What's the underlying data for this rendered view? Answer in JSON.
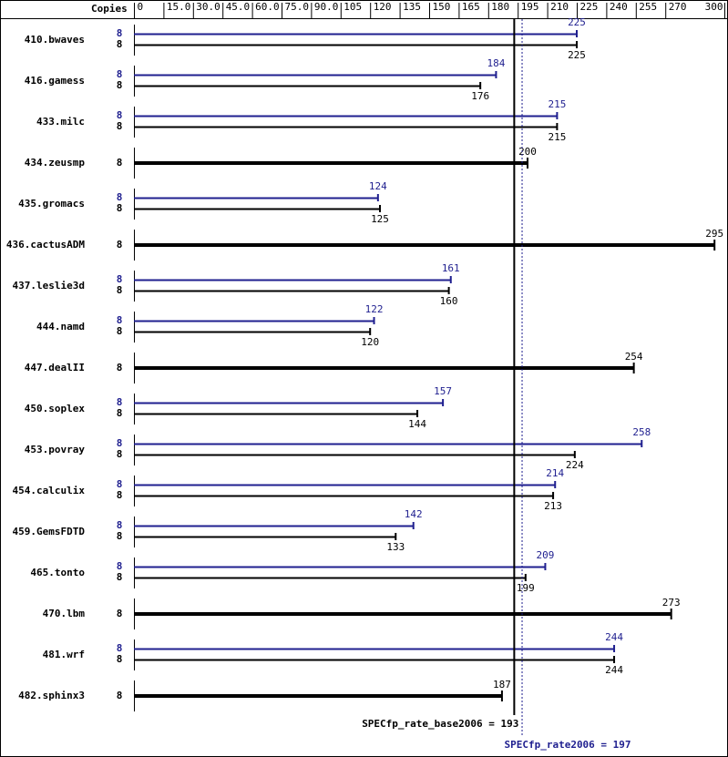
{
  "chart_data": {
    "type": "spec-bar",
    "x_header": "Copies",
    "categories": [
      "410.bwaves",
      "416.gamess",
      "433.milc",
      "434.zeusmp",
      "435.gromacs",
      "436.cactusADM",
      "437.leslie3d",
      "444.namd",
      "447.dealII",
      "450.soplex",
      "453.povray",
      "454.calculix",
      "459.GemsFDTD",
      "465.tonto",
      "470.lbm",
      "481.wrf",
      "482.sphinx3"
    ],
    "series": [
      {
        "color": "#1f1f8f",
        "copies": [
          8,
          8,
          8,
          null,
          8,
          null,
          8,
          8,
          null,
          8,
          8,
          8,
          8,
          8,
          null,
          8,
          null
        ],
        "values": [
          225,
          184,
          215,
          null,
          124,
          null,
          161,
          122,
          null,
          157,
          258,
          214,
          142,
          209,
          null,
          244,
          null
        ]
      },
      {
        "color": "#000000",
        "copies": [
          8,
          8,
          8,
          8,
          8,
          8,
          8,
          8,
          8,
          8,
          8,
          8,
          8,
          8,
          8,
          8,
          8
        ],
        "values": [
          225,
          176,
          215,
          200,
          125,
          295,
          160,
          120,
          254,
          144,
          224,
          213,
          133,
          199,
          273,
          244,
          187
        ]
      }
    ],
    "reference_lines": [
      {
        "label": "SPECfp_rate_base2006 = 193",
        "value": 193,
        "color": "#000000",
        "style": "solid"
      },
      {
        "label": "SPECfp_rate2006 = 197",
        "value": 197,
        "color": "#1f1f8f",
        "style": "dotted"
      }
    ],
    "xlim": [
      0,
      300
    ],
    "xticks": [
      0,
      {
        "value": 15,
        "label": "15.0"
      },
      {
        "value": 30,
        "label": "30.0"
      },
      {
        "value": 45,
        "label": "45.0"
      },
      {
        "value": 60,
        "label": "60.0"
      },
      {
        "value": 75,
        "label": "75.0"
      },
      {
        "value": 90,
        "label": "90.0"
      },
      105,
      120,
      135,
      150,
      165,
      180,
      195,
      210,
      225,
      240,
      255,
      270,
      300
    ]
  }
}
